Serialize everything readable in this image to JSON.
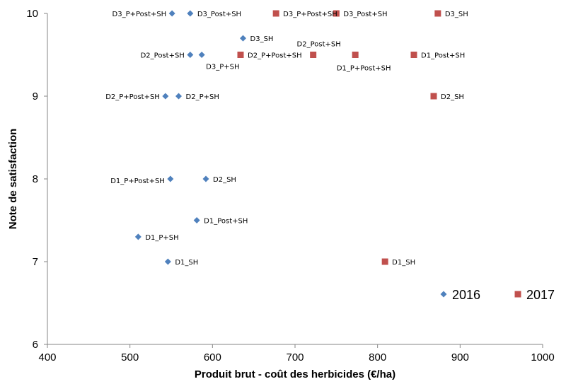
{
  "chart_data": {
    "type": "scatter",
    "xlabel": "Produit brut - coût des herbicides (€/ha)",
    "ylabel": "Note de satisfaction",
    "xlim": [
      400,
      1000
    ],
    "ylim": [
      6,
      10
    ],
    "x_ticks": [
      400,
      500,
      600,
      700,
      800,
      900,
      1000
    ],
    "y_ticks": [
      6,
      7,
      8,
      9,
      10
    ],
    "grid": false,
    "legend_position": "bottom-right",
    "series": [
      {
        "name": "2016",
        "marker": "diamond",
        "color": "#4f81bd",
        "points": [
          {
            "label": "D3_P+Post+SH",
            "x": 551,
            "y": 10
          },
          {
            "label": "D3_Post+SH",
            "x": 573,
            "y": 10
          },
          {
            "label": "D3_SH",
            "x": 637,
            "y": 9.7
          },
          {
            "label": "D2_Post+SH",
            "x": 573,
            "y": 9.5
          },
          {
            "label": "D3_P+SH",
            "x": 587,
            "y": 9.5
          },
          {
            "label": "D2_P+Post+SH",
            "x": 543,
            "y": 9
          },
          {
            "label": "D2_P+SH",
            "x": 559,
            "y": 9
          },
          {
            "label": "D1_P+Post+SH",
            "x": 549,
            "y": 8
          },
          {
            "label": "D2_SH",
            "x": 592,
            "y": 8
          },
          {
            "label": "D1_Post+SH",
            "x": 581,
            "y": 7.5
          },
          {
            "label": "D1_P+SH",
            "x": 510,
            "y": 7.3
          },
          {
            "label": "D1_SH",
            "x": 546,
            "y": 7
          }
        ]
      },
      {
        "name": "2017",
        "marker": "square",
        "color": "#c0504d",
        "points": [
          {
            "label": "D3_P+Post+SH",
            "x": 677,
            "y": 10
          },
          {
            "label": "D3_Post+SH",
            "x": 750,
            "y": 10
          },
          {
            "label": "D3_SH",
            "x": 873,
            "y": 10
          },
          {
            "label": "D2_P+Post+SH",
            "x": 634,
            "y": 9.5
          },
          {
            "label": "D2_Post+SH",
            "x": 722,
            "y": 9.5
          },
          {
            "label": "D1_P+Post+SH",
            "x": 773,
            "y": 9.5
          },
          {
            "label": "D1_Post+SH",
            "x": 844,
            "y": 9.5
          },
          {
            "label": "D2_SH",
            "x": 868,
            "y": 9
          },
          {
            "label": "D1_SH",
            "x": 809,
            "y": 7
          }
        ]
      }
    ]
  }
}
